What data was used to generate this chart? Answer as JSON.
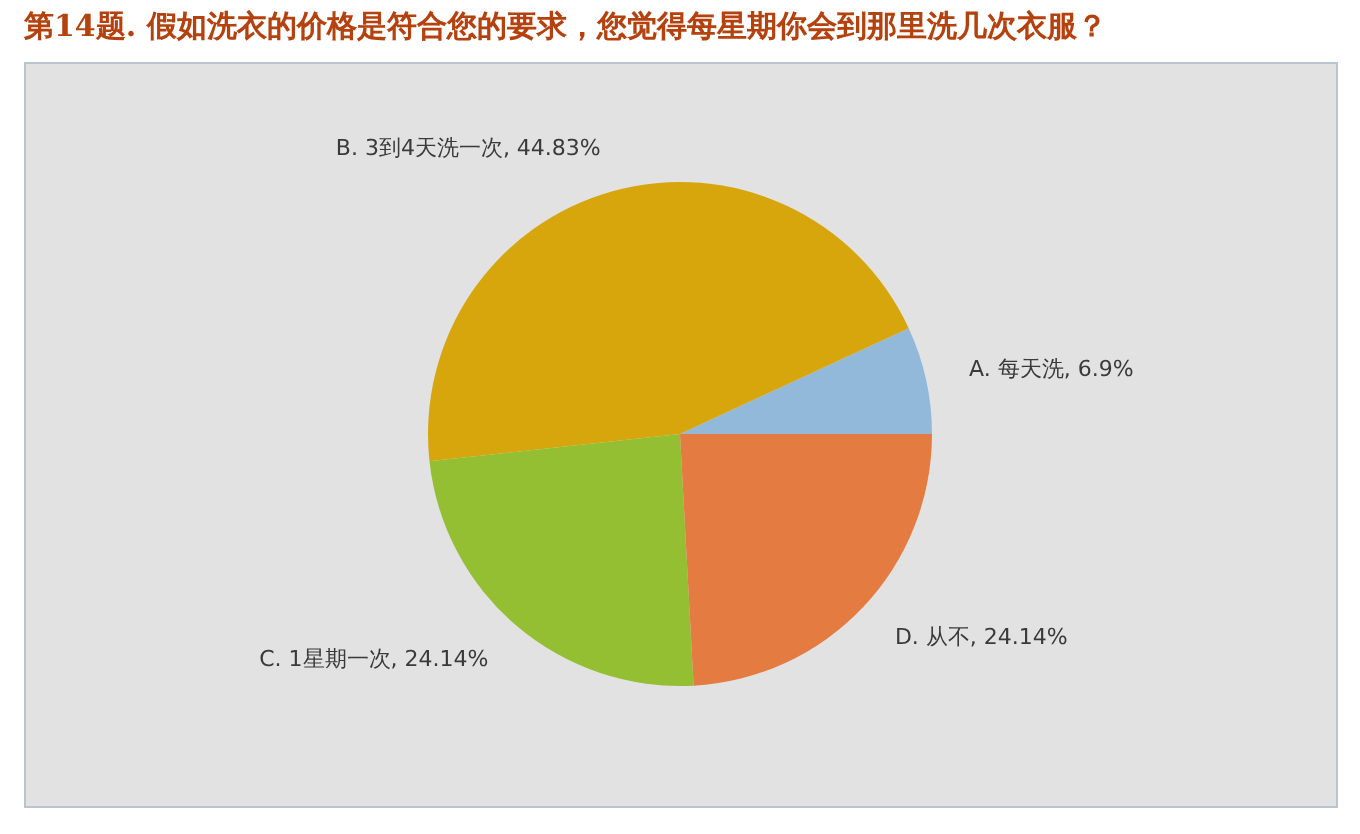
{
  "chart_data": {
    "type": "pie",
    "title": "第14题. 假如洗衣的价格是符合您的要求，您觉得每星期你会到那里洗几次衣服？",
    "categories": [
      "A. 每天洗",
      "B. 3到4天洗一次",
      "C. 1星期一次",
      "D. 从不"
    ],
    "values": [
      6.9,
      44.83,
      24.14,
      24.14
    ],
    "value_labels": [
      "6.9%",
      "44.83%",
      "24.14%",
      "24.14%"
    ],
    "colors": [
      "#93b9da",
      "#d6a60c",
      "#94bf32",
      "#e47b40"
    ]
  }
}
